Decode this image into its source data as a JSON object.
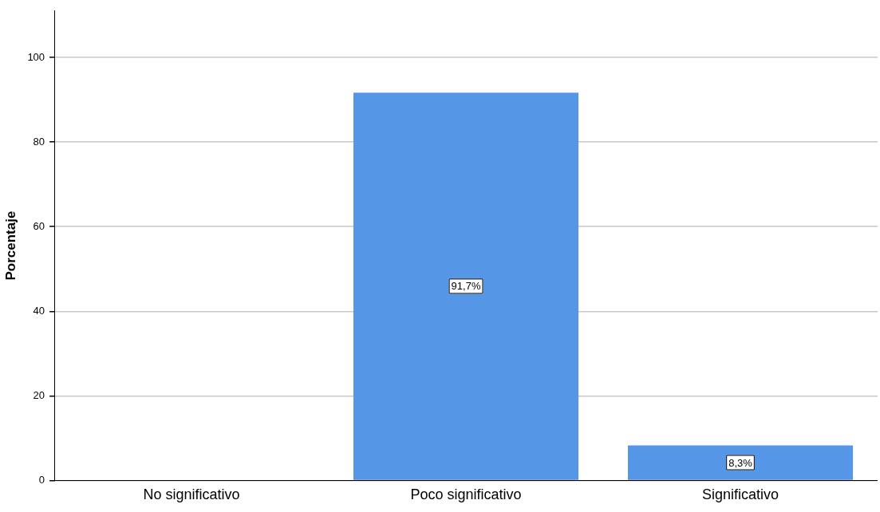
{
  "chart_data": {
    "type": "bar",
    "ylabel": "Porcentaje",
    "categories": [
      "No significativo",
      "Poco significativo",
      "Significativo"
    ],
    "values": [
      0,
      91.7,
      8.3
    ],
    "value_labels": [
      null,
      "91,7%",
      "8,3%"
    ],
    "color": "#5596e6",
    "ylim": [
      0,
      111
    ],
    "yticks": [
      0,
      20,
      40,
      60,
      80,
      100
    ],
    "grid": "y"
  }
}
